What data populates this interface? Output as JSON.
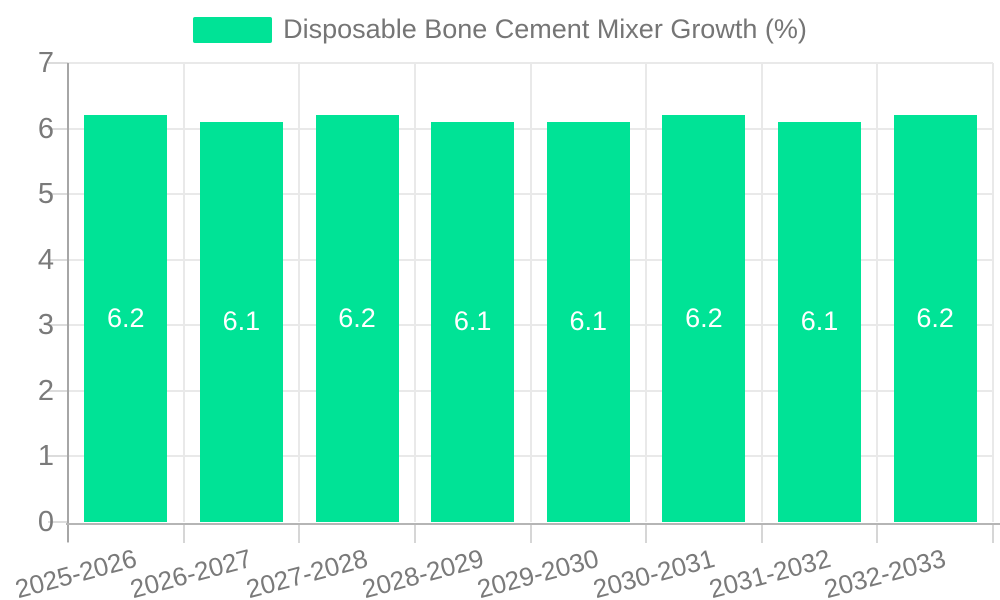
{
  "legend": {
    "label": "Disposable Bone Cement Mixer Growth (%)",
    "swatch_color": "#00E396"
  },
  "chart_data": {
    "type": "bar",
    "title": "Disposable Bone Cement Mixer Growth (%)",
    "categories": [
      "2025-2026",
      "2026-2027",
      "2027-2028",
      "2028-2029",
      "2029-2030",
      "2030-2031",
      "2031-2032",
      "2032-2033"
    ],
    "values": [
      6.2,
      6.1,
      6.2,
      6.1,
      6.1,
      6.2,
      6.1,
      6.2
    ],
    "data_labels": [
      "6.2",
      "6.1",
      "6.2",
      "6.1",
      "6.1",
      "6.2",
      "6.1",
      "6.2"
    ],
    "xlabel": "",
    "ylabel": "",
    "ylim": [
      0,
      7
    ],
    "yticks": [
      0,
      1,
      2,
      3,
      4,
      5,
      6,
      7
    ],
    "grid": true,
    "legend_position": "top",
    "x_label_rotation_deg": -15,
    "bar_color": "#00E396",
    "data_label_color": "#FFFFFF",
    "axis_label_color": "#7A7A7A"
  }
}
